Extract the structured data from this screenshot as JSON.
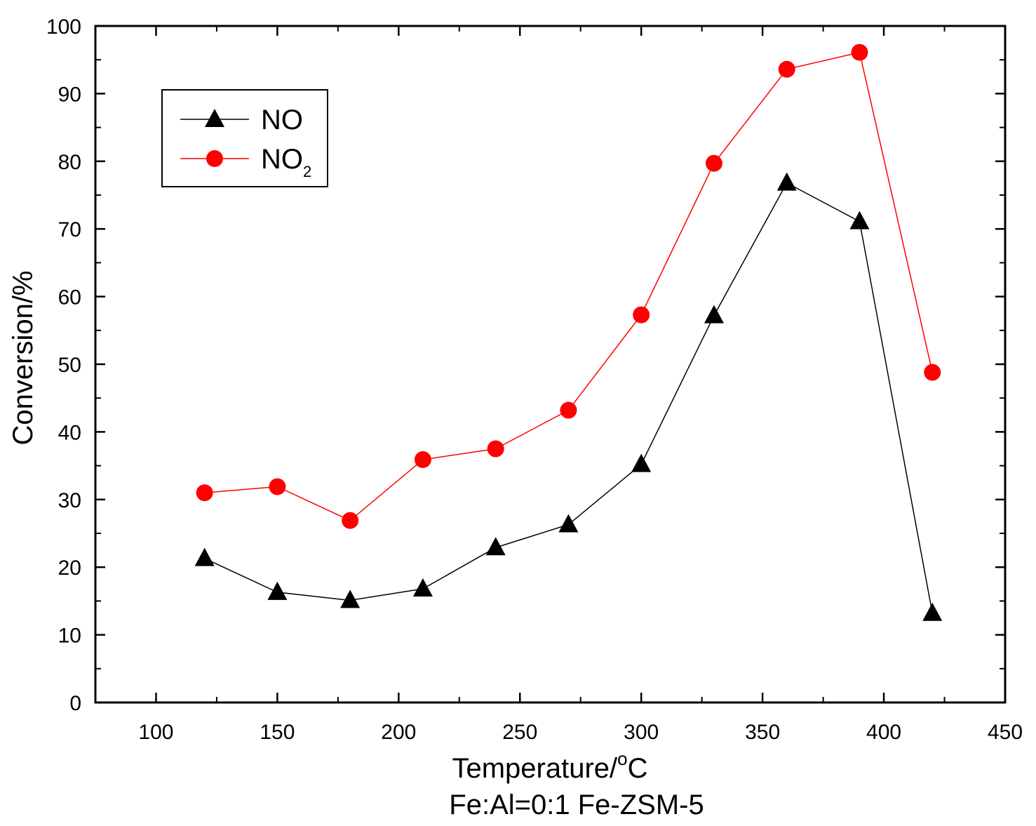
{
  "chart_data": {
    "type": "line",
    "title": "",
    "subtitle": "Fe:Al=0:1 Fe-ZSM-5",
    "xlabel": {
      "text": "Temperature/",
      "superscript": "o",
      "unit": "C"
    },
    "ylabel": "Conversion/%",
    "xlim": [
      75,
      450
    ],
    "ylim": [
      0,
      100
    ],
    "x_ticks": [
      100,
      150,
      200,
      250,
      300,
      350,
      400,
      450
    ],
    "y_ticks": [
      0,
      10,
      20,
      30,
      40,
      50,
      60,
      70,
      80,
      90,
      100
    ],
    "grid": false,
    "legend_position": "top-left",
    "x": [
      120,
      150,
      180,
      210,
      240,
      270,
      300,
      330,
      360,
      390,
      420
    ],
    "series": [
      {
        "name": "NO",
        "name_subscript": "",
        "marker": "triangle",
        "color": "#000000",
        "values": [
          21.3,
          16.3,
          15.1,
          16.8,
          22.9,
          26.3,
          35.2,
          57.2,
          76.8,
          71.1,
          13.2
        ]
      },
      {
        "name": "NO",
        "name_subscript": "2",
        "marker": "circle",
        "color": "#ff0000",
        "values": [
          31.0,
          31.9,
          26.9,
          35.9,
          37.5,
          43.2,
          57.3,
          79.7,
          93.6,
          96.1,
          48.8
        ]
      }
    ]
  }
}
